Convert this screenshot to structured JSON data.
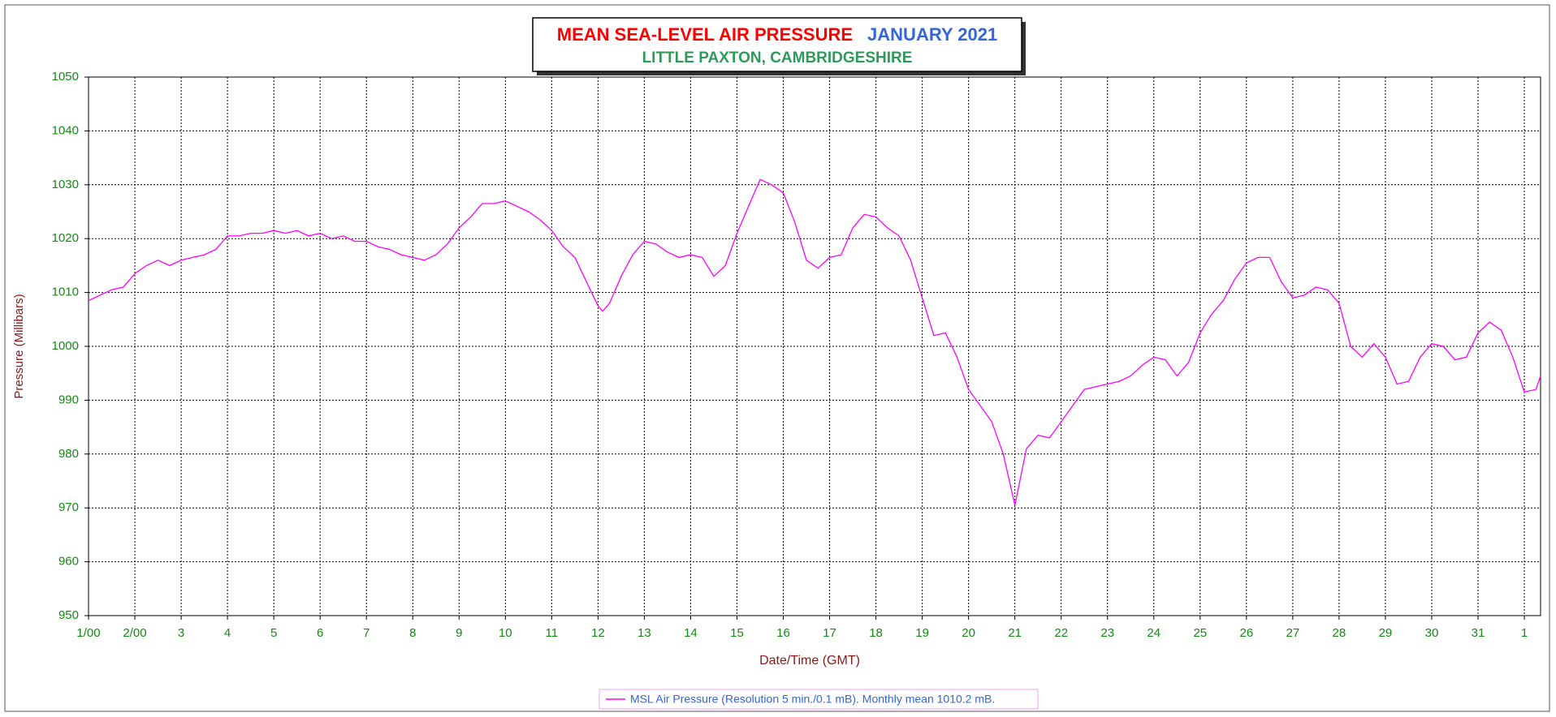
{
  "chart_data": {
    "type": "line",
    "title": "MEAN SEA-LEVEL AIR PRESSURE",
    "title_period": "JANUARY 2021",
    "subtitle": "LITTLE PAXTON, CAMBRIDGESHIRE",
    "x_label": "Date/Time (GMT)",
    "y_label": "Pressure (Millibars)",
    "x": [
      1,
      1.25,
      1.5,
      1.75,
      2,
      2.25,
      2.5,
      2.75,
      3,
      3.25,
      3.5,
      3.75,
      4,
      4.25,
      4.5,
      4.75,
      5,
      5.25,
      5.5,
      5.75,
      6,
      6.25,
      6.5,
      6.75,
      7,
      7.25,
      7.5,
      7.75,
      8,
      8.25,
      8.5,
      8.75,
      9,
      9.25,
      9.5,
      9.75,
      10,
      10.25,
      10.5,
      10.75,
      11,
      11.25,
      11.5,
      11.75,
      12,
      12.1,
      12.25,
      12.5,
      12.75,
      13,
      13.25,
      13.5,
      13.75,
      14,
      14.25,
      14.5,
      14.75,
      15,
      15.25,
      15.5,
      15.75,
      16,
      16.25,
      16.5,
      16.75,
      17,
      17.25,
      17.5,
      17.75,
      18,
      18.25,
      18.5,
      18.75,
      19,
      19.25,
      19.5,
      19.75,
      20,
      20.25,
      20.5,
      20.75,
      21,
      21.25,
      21.5,
      21.75,
      22,
      22.25,
      22.5,
      22.75,
      23,
      23.25,
      23.5,
      23.75,
      24,
      24.25,
      24.5,
      24.75,
      25,
      25.25,
      25.5,
      25.75,
      26,
      26.25,
      26.5,
      26.75,
      27,
      27.25,
      27.5,
      27.75,
      28,
      28.25,
      28.5,
      28.75,
      29,
      29.25,
      29.5,
      29.75,
      30,
      30.25,
      30.5,
      30.75,
      31,
      31.25,
      31.5,
      31.75,
      32,
      32.25,
      32.35
    ],
    "series": [
      {
        "name": "MSL Air Pressure (Resolution 5 min./0.1 mB). Monthly mean 1010.2 mB.",
        "color": "#ff00ff",
        "values": [
          1008.5,
          1009.5,
          1010.5,
          1011,
          1013.5,
          1015,
          1016,
          1015,
          1016,
          1016.5,
          1017,
          1018,
          1020.5,
          1020.5,
          1021,
          1021,
          1021.5,
          1021,
          1021.5,
          1020.5,
          1021,
          1020,
          1020.5,
          1019.5,
          1019.5,
          1018.5,
          1018,
          1017,
          1016.5,
          1016,
          1017,
          1019,
          1022,
          1024,
          1026.5,
          1026.5,
          1027,
          1026,
          1025,
          1023.5,
          1021.5,
          1018.5,
          1016.5,
          1012,
          1007.5,
          1006.5,
          1008,
          1013,
          1017,
          1019.5,
          1019,
          1017.5,
          1016.5,
          1017,
          1016.5,
          1013,
          1015,
          1021,
          1026,
          1031,
          1030,
          1028.5,
          1023,
          1016,
          1014.5,
          1016.5,
          1017,
          1022,
          1024.5,
          1024,
          1022,
          1020.5,
          1016,
          1009,
          1002,
          1002.5,
          998,
          992,
          989,
          986,
          980,
          970.5,
          981,
          983.5,
          983,
          986,
          989,
          992,
          992.5,
          993,
          993.5,
          994.5,
          996.5,
          998,
          997.5,
          994.5,
          997,
          1002.5,
          1006,
          1008.5,
          1012.5,
          1015.5,
          1016.5,
          1016.5,
          1012,
          1009,
          1009.5,
          1011,
          1010.5,
          1008,
          1000,
          998,
          1000.5,
          998,
          993,
          993.5,
          998,
          1000.5,
          1000,
          997.5,
          998,
          1002.5,
          1004.5,
          1003,
          998,
          991.5,
          992,
          994.5
        ]
      }
    ],
    "xlim": [
      1,
      32.35
    ],
    "xticks": [
      {
        "value": 1,
        "label": "1/00"
      },
      {
        "value": 2,
        "label": "2/00"
      },
      3,
      4,
      5,
      6,
      7,
      8,
      9,
      10,
      11,
      12,
      13,
      14,
      15,
      16,
      17,
      18,
      19,
      20,
      21,
      22,
      23,
      24,
      25,
      26,
      27,
      28,
      29,
      30,
      31,
      {
        "value": 32,
        "label": "1"
      }
    ],
    "ylim": [
      950,
      1050
    ],
    "yticks": [
      950,
      960,
      970,
      980,
      990,
      1000,
      1010,
      1020,
      1030,
      1040,
      1050
    ],
    "grid": true
  }
}
